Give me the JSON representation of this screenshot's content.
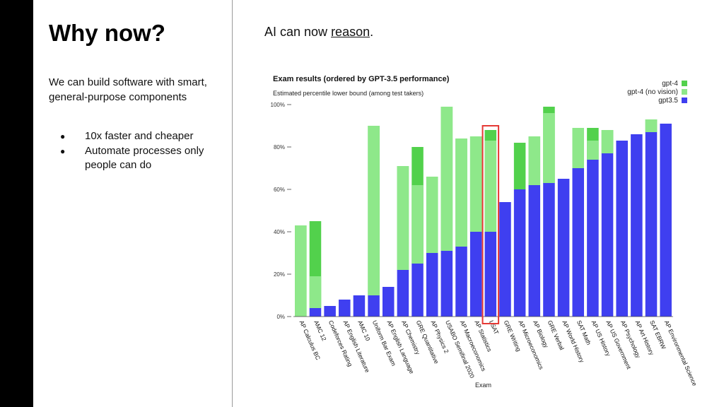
{
  "slide": {
    "title": "Why now?",
    "intro": "We can build software with smart, general-purpose components",
    "bullets": [
      "10x faster and cheaper",
      "Automate processes only people can do"
    ],
    "heading_prefix": "AI can now ",
    "heading_link": "reason",
    "heading_suffix": "."
  },
  "colors": {
    "gpt35": "#3f3ff0",
    "gpt4_no_vision": "#8ee88a",
    "gpt4": "#52d14c",
    "highlight": "#e53935"
  },
  "chart_data": {
    "type": "bar",
    "title": "Exam results (ordered by GPT-3.5 performance)",
    "subtitle": "Estimated percentile lower bound (among test takers)",
    "xlabel": "Exam",
    "ylabel": "",
    "ylim": [
      0,
      100
    ],
    "yticks": [
      "0%",
      "20%",
      "40%",
      "60%",
      "80%",
      "100%"
    ],
    "legend": [
      "gpt-4",
      "gpt-4 (no vision)",
      "gpt3.5"
    ],
    "legend_position": "top-right",
    "highlighted_category": "LSAT",
    "categories": [
      "AP Calculus BC",
      "AMC 12",
      "Codeforces Rating",
      "AP English Literature",
      "AMC 10",
      "Uniform Bar Exam",
      "AP English Language",
      "AP Chemistry",
      "GRE Quantitative",
      "AP Physics 2",
      "USABO Semifinal 2020",
      "AP Macroeconomics",
      "AP Statistics",
      "LSAT",
      "GRE Writing",
      "AP Microeconomics",
      "AP Biology",
      "GRE Verbal",
      "AP World History",
      "SAT Math",
      "AP US History",
      "AP US Government",
      "AP Psychology",
      "AP Art History",
      "SAT EBRW",
      "AP Environmental Science"
    ],
    "series": [
      {
        "name": "gpt3.5",
        "values": [
          0,
          4,
          5,
          8,
          10,
          10,
          14,
          22,
          25,
          30,
          31,
          33,
          40,
          40,
          54,
          60,
          62,
          63,
          65,
          70,
          74,
          77,
          83,
          86,
          87,
          91
        ]
      },
      {
        "name": "gpt-4 (no vision)",
        "values": [
          43,
          19,
          5,
          8,
          10,
          90,
          14,
          71,
          62,
          66,
          99,
          84,
          85,
          83,
          54,
          60,
          85,
          96,
          65,
          89,
          83,
          88,
          83,
          86,
          93,
          91
        ]
      },
      {
        "name": "gpt-4",
        "values": [
          43,
          45,
          5,
          8,
          10,
          90,
          14,
          71,
          80,
          66,
          99,
          84,
          85,
          88,
          54,
          82,
          85,
          99,
          65,
          89,
          89,
          88,
          83,
          86,
          93,
          91
        ]
      }
    ]
  }
}
